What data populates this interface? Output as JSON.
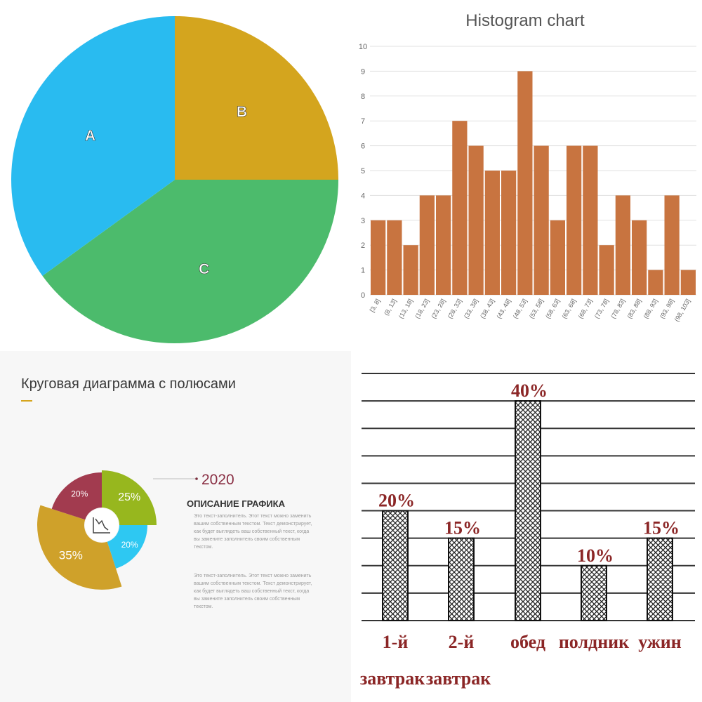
{
  "charts": {
    "pie": {
      "colors": {
        "A": "#29bbf0",
        "B": "#d4a51e",
        "C": "#4cbb6c"
      }
    },
    "histogram": {
      "bar_color": "#c87440",
      "tick_labels_y": [
        "0",
        "1",
        "2",
        "3",
        "4",
        "5",
        "6",
        "7",
        "8",
        "9",
        "10"
      ]
    },
    "donut": {
      "title": "Круговая диаграмма с полюсами",
      "year": "2020",
      "description_title": "ОПИСАНИЕ ГРАФИКА",
      "paragraph1": "Это текст-заполнитель. Этот текст можно заменить вашим собственным текстом. Текст демонстрирует, как будет выглядеть ваш собственный текст, когда вы замените заполнитель своим собственным текстом.",
      "paragraph2": "Это текст-заполнитель. Этот текст можно заменить вашим собственным текстом. Текст демонстрирует, как будет выглядеть ваш собственный текст, когда вы замените заполнитель своим собственным текстом.",
      "center_icon": "chart-trend-down-icon"
    },
    "meals": {
      "bar_pattern": "crosshatch"
    }
  },
  "chart_data": [
    {
      "type": "pie",
      "title": "",
      "slices": [
        {
          "label": "A",
          "value": 35
        },
        {
          "label": "B",
          "value": 25
        },
        {
          "label": "C",
          "value": 40
        }
      ]
    },
    {
      "type": "bar",
      "title": "Histogram chart",
      "categories": [
        "[3, 8]",
        "(8, 13]",
        "(13, 18]",
        "(18, 23]",
        "(23, 28]",
        "(28, 33]",
        "(33, 38]",
        "(38, 43]",
        "(43, 48]",
        "(48, 53]",
        "(53, 58]",
        "(58, 63]",
        "(63, 68]",
        "(68, 73]",
        "(73, 78]",
        "(78, 83]",
        "(83, 88]",
        "(88, 93]",
        "(93, 98]",
        "(98, 103]"
      ],
      "values": [
        3,
        3,
        2,
        4,
        4,
        7,
        6,
        5,
        5,
        9,
        6,
        3,
        6,
        6,
        2,
        4,
        3,
        1,
        4,
        1
      ],
      "ylim": [
        0,
        10
      ],
      "grid": true
    },
    {
      "type": "pie",
      "title": "Круговая диаграмма с полюсами",
      "slices": [
        {
          "label": "25%",
          "value": 25,
          "color": "#97b71e"
        },
        {
          "label": "20%",
          "value": 20,
          "color": "#2ec8f2"
        },
        {
          "label": "35%",
          "value": 35,
          "color": "#cfa12a"
        },
        {
          "label": "20%",
          "value": 20,
          "color": "#a23b4f"
        }
      ]
    },
    {
      "type": "bar",
      "title": "",
      "categories": [
        "1-й завтрак",
        "2-й завтрак",
        "обед",
        "полдник",
        "ужин"
      ],
      "values": [
        20,
        15,
        40,
        10,
        15
      ],
      "data_labels": [
        "20%",
        "15%",
        "40%",
        "10%",
        "15%"
      ],
      "ylim": [
        0,
        45
      ],
      "grid": true
    }
  ]
}
